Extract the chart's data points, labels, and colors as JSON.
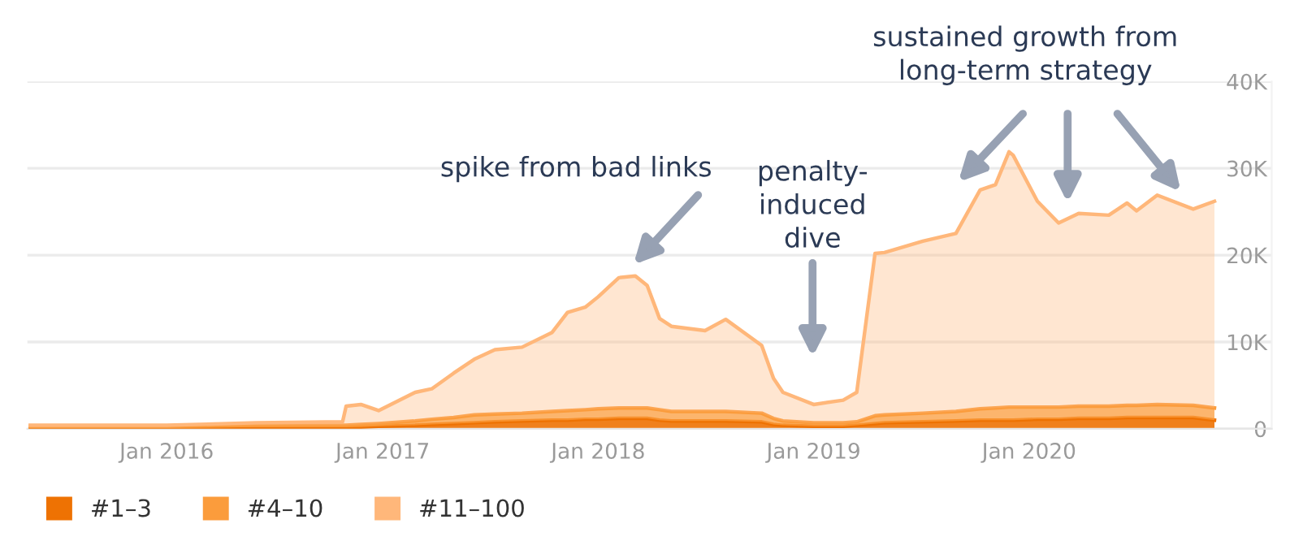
{
  "chart_data": {
    "type": "area",
    "stacked": true,
    "x": [
      "2015-05-15",
      "2016-01-01",
      "2016-06-01",
      "2016-10-25",
      "2016-10-31",
      "2016-11-25",
      "2016-12-25",
      "2017-02-25",
      "2017-03-25",
      "2017-05-01",
      "2017-06-05",
      "2017-07-10",
      "2017-08-25",
      "2017-10-15",
      "2017-11-10",
      "2017-12-10",
      "2018-01-01",
      "2018-02-05",
      "2018-03-05",
      "2018-03-25",
      "2018-04-15",
      "2018-05-05",
      "2018-07-01",
      "2018-08-05",
      "2018-10-05",
      "2018-10-25",
      "2018-11-10",
      "2019-01-01",
      "2019-02-20",
      "2019-03-15",
      "2019-04-15",
      "2019-05-01",
      "2019-07-05",
      "2019-08-30",
      "2019-10-10",
      "2019-11-05",
      "2019-11-28",
      "2019-12-05",
      "2020-01-15",
      "2020-02-20",
      "2020-03-25",
      "2020-05-15",
      "2020-06-15",
      "2020-07-01",
      "2020-08-05",
      "2020-10-05",
      "2020-11-10"
    ],
    "series": [
      {
        "name": "#1–3",
        "color": "#ee7203",
        "values": [
          200,
          200,
          200,
          200,
          200,
          200,
          300,
          400,
          500,
          600,
          700,
          800,
          900,
          1000,
          1000,
          1100,
          1100,
          1200,
          1200,
          1200,
          1000,
          900,
          900,
          900,
          800,
          500,
          400,
          300,
          300,
          400,
          600,
          700,
          800,
          900,
          1000,
          1000,
          1000,
          1000,
          1100,
          1100,
          1200,
          1200,
          1300,
          1300,
          1300,
          1300,
          1000
        ]
      },
      {
        "name": "#4–10",
        "color": "#fb9c3c",
        "values": [
          100,
          100,
          200,
          200,
          200,
          300,
          300,
          500,
          600,
          700,
          900,
          900,
          900,
          1000,
          1100,
          1100,
          1200,
          1200,
          1200,
          1200,
          1200,
          1100,
          1100,
          1100,
          1000,
          700,
          500,
          400,
          400,
          400,
          900,
          900,
          1000,
          1100,
          1300,
          1400,
          1500,
          1500,
          1400,
          1400,
          1400,
          1400,
          1400,
          1400,
          1500,
          1400,
          1400
        ]
      },
      {
        "name": "#11–100",
        "color": "#ffb77a",
        "values": [
          100,
          100,
          300,
          400,
          2200,
          2300,
          1500,
          3300,
          3500,
          5100,
          6400,
          7400,
          7600,
          9100,
          11300,
          11800,
          12900,
          15000,
          15200,
          14100,
          10500,
          9800,
          9300,
          10600,
          7800,
          4600,
          3300,
          2100,
          2600,
          3400,
          18700,
          18700,
          19800,
          20500,
          25200,
          25700,
          29400,
          29000,
          23700,
          21200,
          22200,
          22000,
          23300,
          22400,
          24100,
          22600,
          23800
        ]
      }
    ],
    "xlim": [
      "2015-05-10",
      "2021-02-15"
    ],
    "xticks": [
      {
        "value": "2016-01-01",
        "label": "Jan 2016"
      },
      {
        "value": "2017-01-01",
        "label": "Jan 2017"
      },
      {
        "value": "2018-01-01",
        "label": "Jan 2018"
      },
      {
        "value": "2019-01-01",
        "label": "Jan 2019"
      },
      {
        "value": "2020-01-01",
        "label": "Jan 2020"
      }
    ],
    "ylim": [
      0,
      40000
    ],
    "yticks": [
      0,
      {
        "value": 10000,
        "label": "10K"
      },
      {
        "value": 20000,
        "label": "20K"
      },
      {
        "value": 30000,
        "label": "30K"
      },
      {
        "value": 40000,
        "label": "40K"
      }
    ],
    "grid": "y",
    "legend": "bottom",
    "annotations": [
      "spike from bad links",
      "penalty-\ninduced\ndive",
      "sustained growth from\nlong-term strategy"
    ]
  }
}
